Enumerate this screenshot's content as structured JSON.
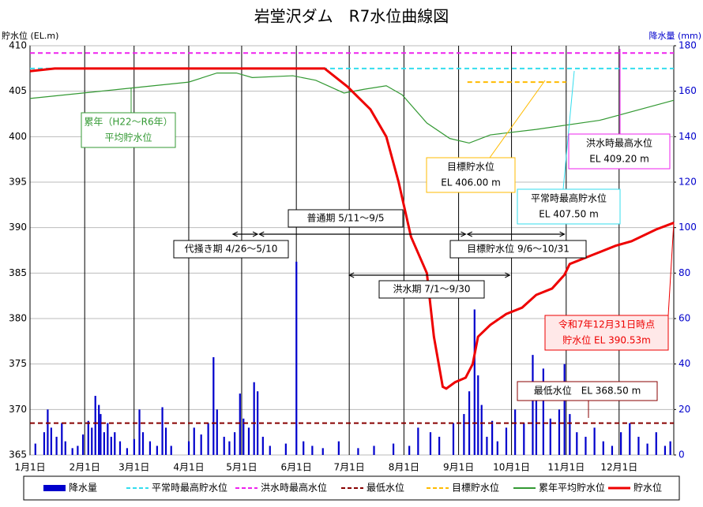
{
  "chart_data": {
    "type": "line",
    "title": "岩堂沢ダム　R7水位曲線図",
    "y_label": "貯水位 (EL.m)",
    "y2_label": "降水量 (mm)",
    "xlim": [
      0,
      365
    ],
    "xticks": [
      {
        "value": 0,
        "label": "1月1日"
      },
      {
        "value": 31,
        "label": "2月1日"
      },
      {
        "value": 59,
        "label": "3月1日"
      },
      {
        "value": 90,
        "label": "4月1日"
      },
      {
        "value": 120,
        "label": "5月1日"
      },
      {
        "value": 151,
        "label": "6月1日"
      },
      {
        "value": 181,
        "label": "7月1日"
      },
      {
        "value": 212,
        "label": "8月1日"
      },
      {
        "value": 243,
        "label": "9月1日"
      },
      {
        "value": 273,
        "label": "10月1日"
      },
      {
        "value": 304,
        "label": "11月1日"
      },
      {
        "value": 334,
        "label": "12月1日"
      }
    ],
    "ylim": [
      365,
      410
    ],
    "yticks": [
      365,
      370,
      375,
      380,
      385,
      390,
      395,
      400,
      405,
      410
    ],
    "y2lim": [
      0,
      180
    ],
    "y2ticks": [
      0,
      20,
      40,
      60,
      80,
      100,
      120,
      140,
      160,
      180
    ],
    "grid": true,
    "series": [
      {
        "name": "降水量",
        "kind": "bar",
        "axis": "y2",
        "color": "#0000cc",
        "x": [
          3,
          8,
          10,
          12,
          15,
          18,
          20,
          24,
          27,
          30,
          33,
          35,
          37,
          39,
          40,
          42,
          44,
          46,
          48,
          51,
          55,
          59,
          62,
          64,
          68,
          72,
          75,
          77,
          80,
          90,
          93,
          97,
          101,
          104,
          106,
          110,
          113,
          116,
          119,
          121,
          124,
          127,
          129,
          132,
          136,
          145,
          151,
          155,
          160,
          166,
          175,
          186,
          195,
          206,
          215,
          220,
          227,
          232,
          240,
          246,
          249,
          252,
          254,
          256,
          259,
          262,
          265,
          270,
          275,
          280,
          285,
          287,
          291,
          295,
          300,
          303,
          306,
          310,
          315,
          320,
          325,
          330,
          335,
          340,
          345,
          350,
          355,
          360,
          363
        ],
        "values": [
          5,
          10,
          20,
          12,
          8,
          14,
          6,
          3,
          4,
          9,
          15,
          12,
          26,
          22,
          18,
          10,
          14,
          8,
          10,
          6,
          3,
          7,
          20,
          10,
          6,
          4,
          21,
          12,
          4,
          6,
          12,
          9,
          14,
          43,
          20,
          8,
          6,
          10,
          27,
          16,
          12,
          32,
          28,
          8,
          4,
          5,
          85,
          6,
          4,
          3,
          6,
          3,
          4,
          5,
          4,
          12,
          10,
          8,
          14,
          18,
          28,
          64,
          35,
          22,
          8,
          15,
          6,
          12,
          20,
          14,
          44,
          30,
          38,
          16,
          20,
          40,
          18,
          10,
          8,
          12,
          6,
          4,
          10,
          14,
          8,
          5,
          10,
          4,
          6
        ]
      },
      {
        "name": "平常時最高貯水位",
        "kind": "line",
        "dash": true,
        "color": "#33ddee",
        "x": [
          0,
          365
        ],
        "values": [
          407.5,
          407.5
        ]
      },
      {
        "name": "洪水時最高水位",
        "kind": "line",
        "dash": true,
        "color": "#ee22ee",
        "x": [
          0,
          365
        ],
        "values": [
          409.2,
          409.2
        ]
      },
      {
        "name": "最低水位",
        "kind": "line",
        "dash": true,
        "color": "#880000",
        "x": [
          0,
          365
        ],
        "values": [
          368.5,
          368.5
        ]
      },
      {
        "name": "目標貯水位",
        "kind": "line",
        "dash": true,
        "color": "#ffbb00",
        "x": [
          248,
          304
        ],
        "values": [
          406.0,
          406.0
        ]
      },
      {
        "name": "累年平均貯水位",
        "kind": "line",
        "color": "#339933",
        "x": [
          0,
          50,
          90,
          106,
          117,
          126,
          149,
          162,
          178,
          189,
          202,
          211,
          225,
          238,
          249,
          261,
          287,
          323,
          365
        ],
        "values": [
          404.2,
          405.2,
          406.0,
          407.0,
          407.0,
          406.5,
          406.7,
          406.2,
          404.8,
          405.2,
          405.6,
          404.6,
          401.5,
          399.8,
          399.3,
          400.2,
          400.8,
          401.8,
          404.0
        ]
      },
      {
        "name": "貯水位",
        "kind": "line",
        "width": 3,
        "color": "#ee0000",
        "x": [
          0,
          14,
          167,
          180,
          193,
          202,
          209,
          216,
          225,
          229,
          234,
          236,
          241,
          247,
          251,
          254,
          261,
          270,
          279,
          287,
          296,
          303,
          306,
          319,
          332,
          341,
          355,
          365
        ],
        "values": [
          407.2,
          407.5,
          407.5,
          405.5,
          403,
          400,
          395,
          389,
          385,
          378,
          372.5,
          372.3,
          373,
          373.5,
          375,
          378,
          379.3,
          380.5,
          381.2,
          382.6,
          383.3,
          384.8,
          386,
          387,
          388,
          388.5,
          389.8,
          390.53
        ]
      }
    ],
    "periods": [
      {
        "label": "代掻き期 4/26〜5/10",
        "range": [
          115,
          129
        ]
      },
      {
        "label": "普通期 5/11〜9/5",
        "range": [
          130,
          247
        ]
      },
      {
        "label": "目標貯水位 9/6〜10/31",
        "range": [
          248,
          303
        ]
      },
      {
        "label": "洪水期 7/1〜9/30",
        "range": [
          181,
          272
        ]
      }
    ],
    "annotations": [
      {
        "lines": [
          "累年（H22〜R6年）",
          "平均貯水位"
        ]
      },
      {
        "lines": [
          "目標貯水位",
          "EL 406.00 m"
        ]
      },
      {
        "lines": [
          "平常時最高貯水位",
          "EL 407.50 m"
        ]
      },
      {
        "lines": [
          "洪水時最高水位",
          "EL 409.20 m"
        ]
      },
      {
        "lines": [
          "令和7年12月31日時点",
          "貯水位 EL 390.53m"
        ]
      },
      {
        "lines": [
          "最低水位　EL 368.50 m"
        ]
      }
    ]
  }
}
